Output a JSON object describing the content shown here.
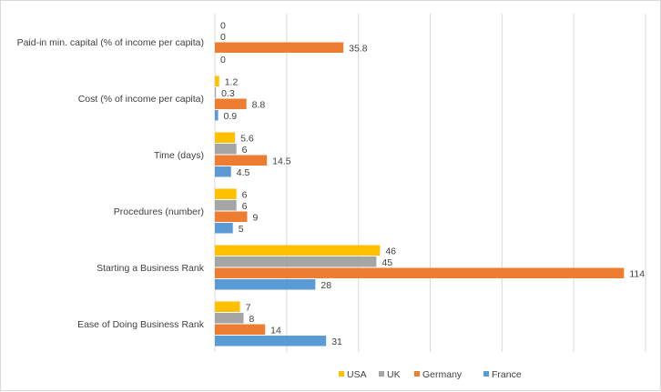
{
  "chart_data": {
    "type": "bar",
    "orientation": "horizontal",
    "categories": [
      "Paid-in min. capital (% of income per capita)",
      "Cost (% of income per capita)",
      "Time (days)",
      "Procedures (number)",
      "Starting a Business Rank",
      "Ease of Doing Business Rank"
    ],
    "series": [
      {
        "name": "USA",
        "color": "#ffc000",
        "values": [
          0,
          1.2,
          5.6,
          6,
          46,
          7
        ]
      },
      {
        "name": "UK",
        "color": "#a5a5a5",
        "values": [
          0,
          0.3,
          6,
          6,
          45,
          8
        ]
      },
      {
        "name": "Germany",
        "color": "#ed7d31",
        "values": [
          35.8,
          8.8,
          14.5,
          9,
          114,
          14
        ]
      },
      {
        "name": "France",
        "color": "#5b9bd5",
        "values": [
          0,
          0.9,
          4.5,
          5,
          28,
          31
        ]
      }
    ],
    "value_labels": [
      [
        "0",
        "1.2",
        "5.6",
        "6",
        "46",
        "7"
      ],
      [
        "0",
        "0.3",
        "6",
        "6",
        "45",
        "8"
      ],
      [
        "35.8",
        "8.8",
        "14.5",
        "9",
        "114",
        "14"
      ],
      [
        "0",
        "0.9",
        "4.5",
        "5",
        "28",
        "31"
      ]
    ],
    "xlim": [
      0,
      120
    ],
    "grid": "vertical",
    "legend_position": "bottom",
    "title": "",
    "xlabel": "",
    "ylabel": ""
  }
}
